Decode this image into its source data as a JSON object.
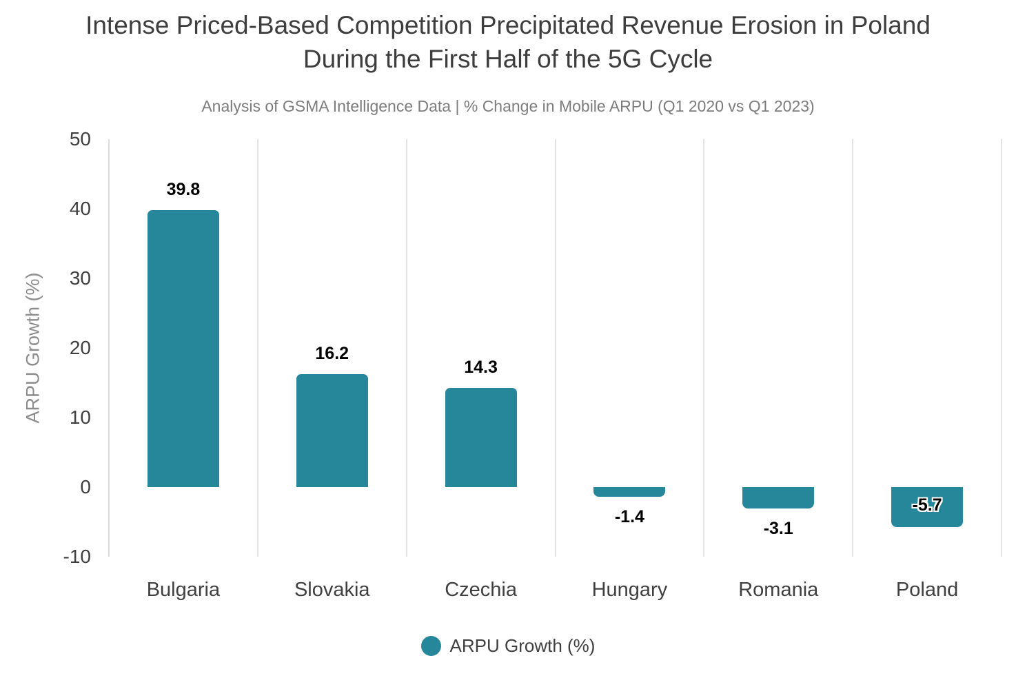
{
  "title": "Intense Priced-Based Competition Precipitated Revenue Erosion in Poland\nDuring the First Half of the 5G Cycle",
  "subtitle": "Analysis of GSMA Intelligence Data | % Change in Mobile ARPU (Q1 2020 vs Q1 2023)",
  "legend": {
    "label": "ARPU Growth (%)"
  },
  "colors": {
    "bar": "#26879b",
    "grid": "#e3e3e3",
    "axis_line": "#dcdcdc",
    "title": "#3d3d3d",
    "subtitle": "#7c7c7c",
    "tick": "#3f3f3f",
    "axis_title": "#8c8c8c",
    "value_label": "#000000"
  },
  "chart_data": {
    "type": "bar",
    "title": "Intense Priced-Based Competition Precipitated Revenue Erosion in Poland During the First Half of the 5G Cycle",
    "subtitle": "Analysis of GSMA Intelligence Data | % Change in Mobile ARPU (Q1 2020 vs Q1 2023)",
    "categories": [
      "Bulgaria",
      "Slovakia",
      "Czechia",
      "Hungary",
      "Romania",
      "Poland"
    ],
    "series": [
      {
        "name": "ARPU Growth (%)",
        "values": [
          39.8,
          16.2,
          14.3,
          -1.4,
          -3.1,
          -5.7
        ]
      }
    ],
    "value_labels": [
      "39.8",
      "16.2",
      "14.3",
      "-1.4",
      "-3.1",
      "-5.7"
    ],
    "value_label_positions": [
      "above",
      "above",
      "above",
      "below",
      "below",
      "inside"
    ],
    "xlabel": "",
    "ylabel": "ARPU Growth (%)",
    "ylim": [
      -10,
      50
    ],
    "yticks": [
      50,
      40,
      30,
      20,
      10,
      0,
      -10
    ],
    "grid": "vertical-only",
    "legend_position": "bottom-center",
    "bar_color": "#26879b"
  }
}
